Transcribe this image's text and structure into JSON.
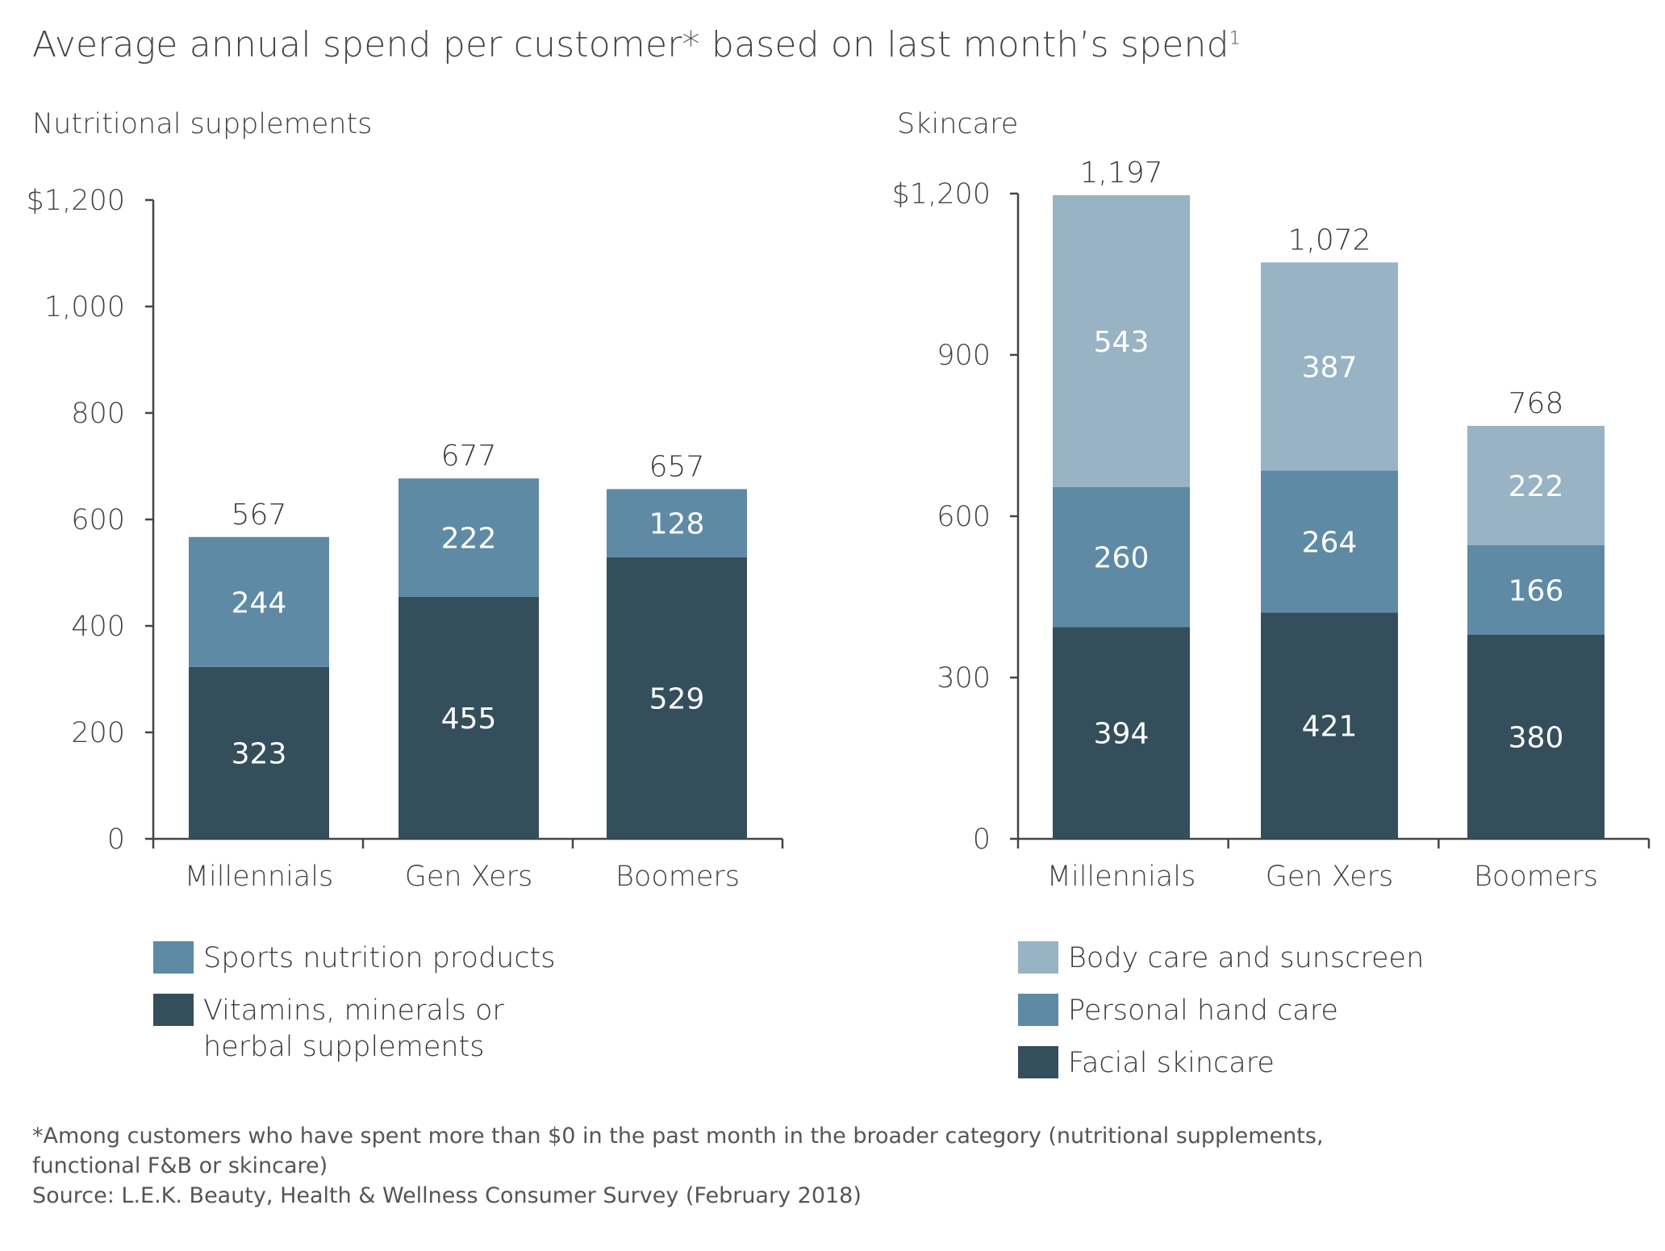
{
  "title": "Average annual spend per customer* based on last month’s spend",
  "title_superscript": "1",
  "colors": {
    "dark": "#354e5c",
    "medium": "#5e8aa5",
    "light": "#97b3c4",
    "axis": "#444444",
    "text": "#3a3a3a"
  },
  "chart_data": [
    {
      "type": "bar",
      "stacked": true,
      "title": "Nutritional supplements",
      "categories": [
        "Millennials",
        "Gen Xers",
        "Boomers"
      ],
      "ylim": [
        0,
        1200
      ],
      "yticks": [
        0,
        200,
        400,
        600,
        800,
        1000,
        1200
      ],
      "ytick_labels": [
        "0",
        "200",
        "400",
        "600",
        "800",
        "1,000",
        "$1,200"
      ],
      "series": [
        {
          "name": "Vitamins, minerals or herbal supplements",
          "legend_lines": [
            "Vitamins, minerals or",
            "herbal supplements"
          ],
          "color": "#354e5c",
          "values": [
            323,
            455,
            529
          ]
        },
        {
          "name": "Sports nutrition products",
          "legend_lines": [
            "Sports nutrition products"
          ],
          "color": "#5e8aa5",
          "values": [
            244,
            222,
            128
          ]
        }
      ],
      "totals": [
        567,
        677,
        657
      ],
      "total_labels": [
        "567",
        "677",
        "657"
      ],
      "legend_order": [
        1,
        0
      ],
      "grid": false
    },
    {
      "type": "bar",
      "stacked": true,
      "title": "Skincare",
      "categories": [
        "Millennials",
        "Gen Xers",
        "Boomers"
      ],
      "ylim": [
        0,
        1200
      ],
      "yticks": [
        0,
        300,
        600,
        900,
        1200
      ],
      "ytick_labels": [
        "0",
        "300",
        "600",
        "900",
        "$1,200"
      ],
      "series": [
        {
          "name": "Facial skincare",
          "legend_lines": [
            "Facial skincare"
          ],
          "color": "#354e5c",
          "values": [
            394,
            421,
            380
          ]
        },
        {
          "name": "Personal hand care",
          "legend_lines": [
            "Personal hand care"
          ],
          "color": "#5e8aa5",
          "values": [
            260,
            264,
            166
          ]
        },
        {
          "name": "Body care and sunscreen",
          "legend_lines": [
            "Body care and sunscreen"
          ],
          "color": "#97b3c4",
          "values": [
            543,
            387,
            222
          ]
        }
      ],
      "totals": [
        1197,
        1072,
        768
      ],
      "total_labels": [
        "1,197",
        "1,072",
        "768"
      ],
      "legend_order": [
        2,
        1,
        0
      ],
      "grid": false
    }
  ],
  "footnotes": {
    "line1": "*Among customers who have spent more than $0 in the past month in the broader category (nutritional supplements,",
    "line2": "functional F&B or skincare)",
    "source": "Source: L.E.K. Beauty, Health & Wellness Consumer Survey (February 2018)"
  }
}
